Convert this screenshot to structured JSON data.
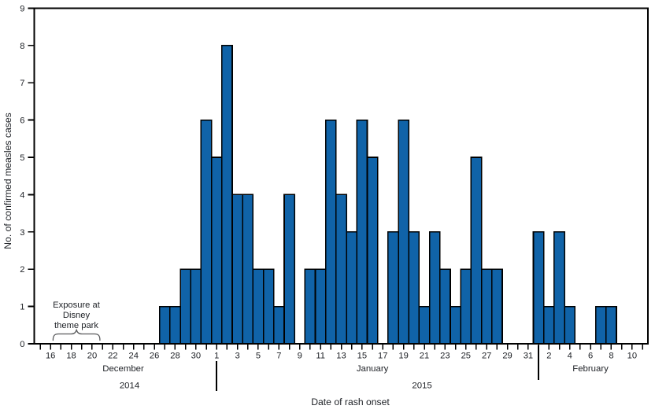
{
  "chart_data": {
    "type": "bar",
    "title": "",
    "xlabel": "Date of rash onset",
    "ylabel": "No. of confirmed measles cases",
    "ylim": [
      0,
      9
    ],
    "y_ticks": [
      0,
      1,
      2,
      3,
      4,
      5,
      6,
      7,
      8,
      9
    ],
    "x_tick_label_interval_days": 2,
    "legend": "none",
    "grid": "off",
    "colors": {
      "bar_fill": "#1063A8",
      "bar_outline": "#000000",
      "axis": "#000000",
      "text": "#202328",
      "brace": "#58595b"
    },
    "annotation": {
      "lines": [
        "Exposure at",
        "Disney",
        "theme park"
      ],
      "brace_from_day": 17,
      "brace_to_day": 20,
      "brace_month": "December"
    },
    "months": [
      {
        "label": "December",
        "year": "2014",
        "days": [
          15,
          16,
          17,
          18,
          19,
          20,
          21,
          22,
          23,
          24,
          25,
          26,
          27,
          28,
          29,
          30,
          31
        ],
        "values": [
          0,
          0,
          0,
          0,
          0,
          0,
          0,
          0,
          0,
          0,
          0,
          0,
          1,
          1,
          2,
          2,
          6
        ]
      },
      {
        "label": "January",
        "year": "2015",
        "days": [
          1,
          2,
          3,
          4,
          5,
          6,
          7,
          8,
          9,
          10,
          11,
          12,
          13,
          14,
          15,
          16,
          17,
          18,
          19,
          20,
          21,
          22,
          23,
          24,
          25,
          26,
          27,
          28,
          29,
          30,
          31
        ],
        "values": [
          5,
          8,
          4,
          4,
          2,
          2,
          1,
          4,
          0,
          2,
          2,
          6,
          4,
          3,
          6,
          5,
          0,
          3,
          6,
          3,
          1,
          3,
          2,
          1,
          2,
          5,
          2,
          2,
          0,
          0,
          0
        ]
      },
      {
        "label": "February",
        "year": "",
        "days": [
          1,
          2,
          3,
          4,
          5,
          6,
          7,
          8,
          9,
          10,
          11
        ],
        "values": [
          3,
          1,
          3,
          1,
          0,
          0,
          1,
          1,
          0,
          0,
          0
        ]
      }
    ]
  }
}
